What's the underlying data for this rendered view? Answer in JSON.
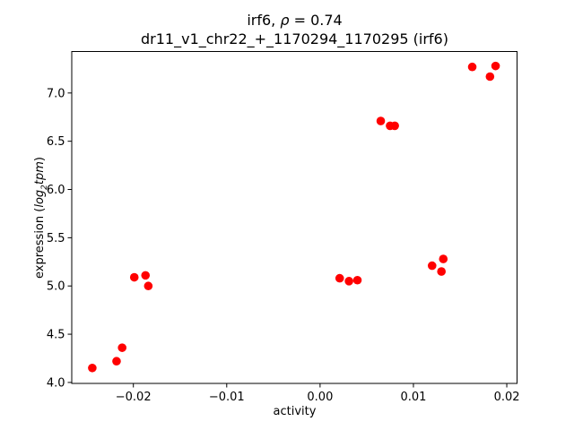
{
  "figure": {
    "background": "#ffffff"
  },
  "title": {
    "line1_prefix": "irf6, ",
    "line1_rho": "ρ",
    "line1_suffix": " = 0.74",
    "line2": "dr11_v1_chr22_+_1170294_1170295 (irf6)"
  },
  "ylabel": {
    "prefix": "expression (",
    "log": "log",
    "sub": "2",
    "tpm": "tpm",
    "suffix": ")"
  },
  "chart_data": {
    "type": "scatter",
    "title": "irf6, ρ = 0.74",
    "subtitle": "dr11_v1_chr22_+_1170294_1170295 (irf6)",
    "xlabel": "activity",
    "ylabel": "expression (log2tpm)",
    "marker_color": "#ff0000",
    "marker_diameter_px": 9.6,
    "grid": false,
    "legend": null,
    "xlim": [
      -0.0266,
      0.0211
    ],
    "ylim": [
      3.99,
      7.43
    ],
    "xticks": [
      -0.02,
      -0.01,
      0,
      0.01,
      0.02
    ],
    "xtick_labels": [
      "−0.02",
      "−0.01",
      "0.00",
      "0.01",
      "0.02"
    ],
    "yticks": [
      4.0,
      4.5,
      5.0,
      5.5,
      6.0,
      6.5,
      7.0
    ],
    "ytick_labels": [
      "4.0",
      "4.5",
      "5.0",
      "5.5",
      "6.0",
      "6.5",
      "7.0"
    ],
    "points": [
      {
        "x": -0.0244,
        "y": 4.15
      },
      {
        "x": -0.0218,
        "y": 4.22
      },
      {
        "x": -0.0212,
        "y": 4.36
      },
      {
        "x": -0.0199,
        "y": 5.09
      },
      {
        "x": -0.0187,
        "y": 5.11
      },
      {
        "x": -0.0184,
        "y": 5.0
      },
      {
        "x": 0.0021,
        "y": 5.08
      },
      {
        "x": 0.0031,
        "y": 5.05
      },
      {
        "x": 0.004,
        "y": 5.06
      },
      {
        "x": 0.0065,
        "y": 6.71
      },
      {
        "x": 0.0075,
        "y": 6.66
      },
      {
        "x": 0.008,
        "y": 6.66
      },
      {
        "x": 0.012,
        "y": 5.21
      },
      {
        "x": 0.013,
        "y": 5.15
      },
      {
        "x": 0.0132,
        "y": 5.28
      },
      {
        "x": 0.0163,
        "y": 7.27
      },
      {
        "x": 0.0182,
        "y": 7.17
      },
      {
        "x": 0.0188,
        "y": 7.28
      }
    ]
  }
}
